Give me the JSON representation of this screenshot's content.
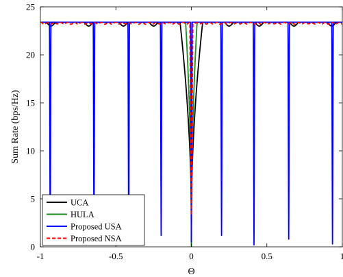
{
  "chart_data": {
    "type": "line",
    "xlabel": "Θ",
    "ylabel": "Sum Rate (bps/Hz)",
    "xlim": [
      -1,
      1
    ],
    "ylim": [
      0,
      25
    ],
    "xticks": [
      -1,
      -0.5,
      0,
      0.5,
      1
    ],
    "xtick_labels": [
      "-1",
      "-0.5",
      "0",
      "0.5",
      "1"
    ],
    "yticks": [
      0,
      5,
      10,
      15,
      20,
      25
    ],
    "ytick_labels": [
      "0",
      "5",
      "10",
      "15",
      "20",
      "25"
    ],
    "grid": false,
    "legend_position": "bottom-left",
    "baseline": 23.4,
    "series": [
      {
        "name": "UCA",
        "color": "#000000",
        "style": "solid",
        "dips": [
          {
            "x": -0.93,
            "y": 23.0
          },
          {
            "x": -0.68,
            "y": 23.0
          },
          {
            "x": -0.45,
            "y": 23.0
          },
          {
            "x": -0.25,
            "y": 23.0
          },
          {
            "x": 0.25,
            "y": 23.0
          },
          {
            "x": 0.45,
            "y": 23.0
          },
          {
            "x": 0.68,
            "y": 23.0
          },
          {
            "x": 0.93,
            "y": 23.0
          }
        ],
        "center_min": 3.5,
        "center_halfwidth": 0.075
      },
      {
        "name": "HULA",
        "color": "#1a8c1a",
        "style": "solid",
        "center_min": 0.0,
        "center_halfwidth": 0.038
      },
      {
        "name": "Proposed USA",
        "color": "#0000ff",
        "style": "solid",
        "dips": [
          {
            "x": -0.935,
            "y": 0.3
          },
          {
            "x": -0.645,
            "y": 0.3
          },
          {
            "x": -0.415,
            "y": 0.4
          },
          {
            "x": -0.2,
            "y": 1.2
          },
          {
            "x": 0.0,
            "y": 0.5
          },
          {
            "x": 0.2,
            "y": 1.2
          },
          {
            "x": 0.415,
            "y": 0.2
          },
          {
            "x": 0.645,
            "y": 0.8
          },
          {
            "x": 0.935,
            "y": 0.3
          }
        ]
      },
      {
        "name": "Proposed NSA",
        "color": "#ff0000",
        "style": "dashed",
        "center_min": 3.3,
        "center_halfwidth": 0.01
      }
    ]
  }
}
